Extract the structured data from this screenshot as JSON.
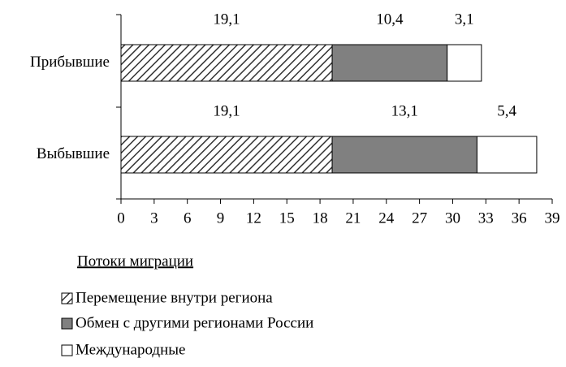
{
  "chart_data": {
    "type": "stacked-barh",
    "categories": [
      "Прибывшие",
      "Выбывшие"
    ],
    "series": [
      {
        "name": "Перемещение внутри региона",
        "color": "#333333",
        "hatch": true,
        "values": [
          19.1,
          19.1
        ],
        "value_labels": [
          "19,1",
          "19,1"
        ]
      },
      {
        "name": "Обмен с другими регионами России",
        "color": "#808080",
        "values": [
          10.4,
          13.1
        ],
        "value_labels": [
          "10,4",
          "13,1"
        ]
      },
      {
        "name": "Международные",
        "color": "#ffffff",
        "values": [
          3.1,
          5.4
        ],
        "value_labels": [
          "3,1",
          "5,4"
        ]
      }
    ],
    "xlim": [
      0,
      39
    ],
    "xticks": [
      0,
      3,
      6,
      9,
      12,
      15,
      18,
      21,
      24,
      27,
      30,
      33,
      36,
      39
    ],
    "legend_title": "Потоки миграции"
  }
}
